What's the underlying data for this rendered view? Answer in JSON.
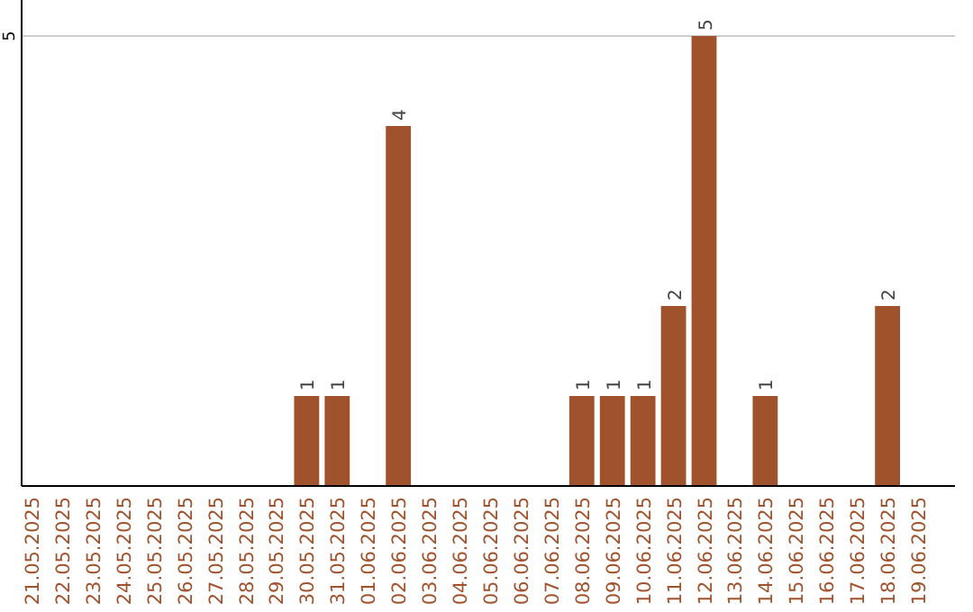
{
  "chart_data": {
    "type": "bar",
    "categories": [
      "21.05.2025",
      "22.05.2025",
      "23.05.2025",
      "24.05.2025",
      "25.05.2025",
      "26.05.2025",
      "27.05.2025",
      "28.05.2025",
      "29.05.2025",
      "30.05.2025",
      "31.05.2025",
      "01.06.2025",
      "02.06.2025",
      "03.06.2025",
      "04.06.2025",
      "05.06.2025",
      "06.06.2025",
      "07.06.2025",
      "08.06.2025",
      "09.06.2025",
      "10.06.2025",
      "11.06.2025",
      "12.06.2025",
      "13.06.2025",
      "14.06.2025",
      "15.06.2025",
      "16.06.2025",
      "17.06.2025",
      "18.06.2025",
      "19.06.2025"
    ],
    "values": [
      0,
      0,
      0,
      0,
      0,
      0,
      0,
      0,
      0,
      1,
      1,
      0,
      4,
      0,
      0,
      0,
      0,
      0,
      1,
      1,
      1,
      2,
      5,
      0,
      1,
      0,
      0,
      0,
      2,
      0
    ],
    "color": "#a0522d",
    "value_labels": [
      null,
      null,
      null,
      null,
      null,
      null,
      null,
      null,
      null,
      "1",
      "1",
      null,
      "4",
      null,
      null,
      null,
      null,
      null,
      "1",
      "1",
      "1",
      "2",
      "5",
      null,
      "1",
      null,
      null,
      null,
      "2",
      null
    ],
    "ylim": [
      0,
      5
    ],
    "yticks": [
      5
    ],
    "ref_lines": [
      {
        "axis": "y",
        "value": 5,
        "color": "#cccccc"
      }
    ]
  }
}
